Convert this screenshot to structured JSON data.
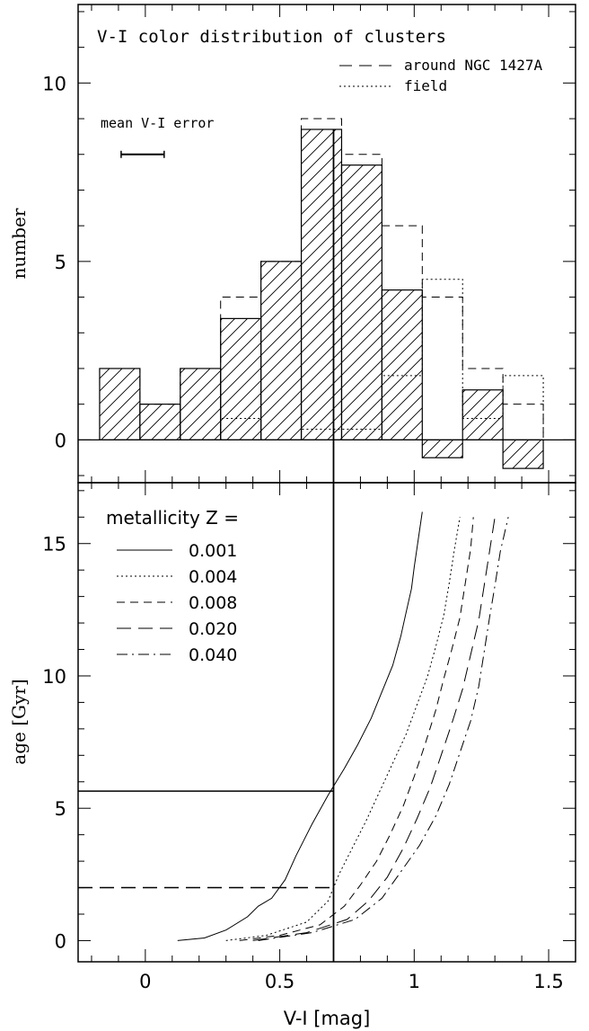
{
  "chart_data": [
    {
      "type": "bar",
      "title": "V-I color distribution of clusters",
      "ylabel": "number",
      "xlim": [
        -0.25,
        1.6
      ],
      "ylim": [
        -1.2,
        12.2
      ],
      "yticks": [
        0,
        5,
        10
      ],
      "xticks": [
        0,
        0.5,
        1,
        1.5
      ],
      "bin_edges": [
        -0.17,
        -0.02,
        0.13,
        0.28,
        0.43,
        0.58,
        0.73,
        0.88,
        1.03,
        1.18,
        1.33,
        1.48
      ],
      "series": [
        {
          "name": "",
          "style": "hatched",
          "values": [
            2,
            1,
            2,
            3.4,
            5,
            8.7,
            7.7,
            4.2,
            -0.5,
            1.4,
            -0.8
          ]
        },
        {
          "name": "around NGC 1427A",
          "style": "dashed",
          "values": [
            2,
            1,
            2,
            4,
            5,
            9,
            8,
            6,
            4,
            2,
            1
          ]
        },
        {
          "name": "field",
          "style": "dotted",
          "values": [
            0,
            0,
            0,
            0.6,
            0,
            0.3,
            0.3,
            1.8,
            4.5,
            0.6,
            1.8
          ]
        }
      ],
      "annotations": {
        "error_bar_label": "mean V-I error",
        "error_bar_center": -0.01,
        "error_bar_halfwidth": 0.08,
        "error_bar_y": 8
      }
    },
    {
      "type": "line",
      "xlabel": "V-I [mag]",
      "ylabel": "age [Gyr]",
      "xlim": [
        -0.25,
        1.6
      ],
      "ylim": [
        -0.8,
        17.3
      ],
      "yticks": [
        0,
        5,
        10,
        15
      ],
      "xticks": [
        0,
        0.5,
        1,
        1.5
      ],
      "xtick_labels": [
        "0",
        "0.5",
        "1",
        "1.5"
      ],
      "legend_title": "metallicity Z =",
      "series": [
        {
          "name": "0.001",
          "style": "solid",
          "x": [
            0.12,
            0.22,
            0.3,
            0.38,
            0.42,
            0.47,
            0.52,
            0.56,
            0.6,
            0.62,
            0.68,
            0.74,
            0.79,
            0.84,
            0.88,
            0.92,
            0.95,
            0.97,
            0.99,
            1.0,
            1.01,
            1.02,
            1.03
          ],
          "y": [
            0.0,
            0.1,
            0.4,
            0.9,
            1.3,
            1.6,
            2.3,
            3.2,
            4.0,
            4.4,
            5.5,
            6.5,
            7.4,
            8.4,
            9.4,
            10.4,
            11.5,
            12.4,
            13.3,
            14.1,
            14.8,
            15.5,
            16.2
          ]
        },
        {
          "name": "0.004",
          "style": "dotted",
          "x": [
            0.3,
            0.45,
            0.6,
            0.68,
            0.72,
            0.77,
            0.82,
            0.87,
            0.92,
            0.97,
            1.01,
            1.05,
            1.08,
            1.11,
            1.13,
            1.15,
            1.17
          ],
          "y": [
            0.0,
            0.2,
            0.7,
            1.5,
            2.5,
            3.5,
            4.5,
            5.6,
            6.7,
            7.8,
            8.9,
            10.0,
            11.1,
            12.3,
            13.5,
            14.8,
            16.0
          ]
        },
        {
          "name": "0.008",
          "style": "dashed",
          "x": [
            0.35,
            0.5,
            0.65,
            0.74,
            0.8,
            0.86,
            0.91,
            0.96,
            1.0,
            1.04,
            1.08,
            1.11,
            1.14,
            1.17,
            1.19,
            1.21,
            1.22
          ],
          "y": [
            0.0,
            0.2,
            0.6,
            1.3,
            2.1,
            3.0,
            4.0,
            5.1,
            6.2,
            7.4,
            8.7,
            9.9,
            11.0,
            12.2,
            13.5,
            14.8,
            16.0
          ]
        },
        {
          "name": "0.020",
          "style": "long-dash",
          "x": [
            0.4,
            0.6,
            0.75,
            0.83,
            0.9,
            0.96,
            1.01,
            1.06,
            1.1,
            1.14,
            1.18,
            1.21,
            1.24,
            1.26,
            1.28,
            1.3
          ],
          "y": [
            0.0,
            0.3,
            0.8,
            1.5,
            2.4,
            3.5,
            4.6,
            5.8,
            7.0,
            8.2,
            9.5,
            10.8,
            12.1,
            13.4,
            14.7,
            16.0
          ]
        },
        {
          "name": "0.040",
          "style": "dash-dot",
          "x": [
            0.42,
            0.62,
            0.78,
            0.88,
            0.95,
            1.02,
            1.08,
            1.13,
            1.17,
            1.21,
            1.24,
            1.26,
            1.28,
            1.3,
            1.32,
            1.35
          ],
          "y": [
            0.0,
            0.3,
            0.8,
            1.6,
            2.6,
            3.6,
            4.7,
            5.9,
            7.1,
            8.3,
            9.6,
            10.9,
            12.2,
            13.4,
            14.7,
            16.0
          ]
        }
      ],
      "reference_lines": [
        {
          "orientation": "vertical",
          "x": 0.7,
          "style": "solid"
        },
        {
          "orientation": "horizontal",
          "y": 5.65,
          "x_from": -0.25,
          "x_to": 0.7,
          "style": "solid"
        },
        {
          "orientation": "horizontal",
          "y": 2.0,
          "x_from": -0.25,
          "x_to": 0.7,
          "style": "long-dash"
        }
      ]
    }
  ]
}
